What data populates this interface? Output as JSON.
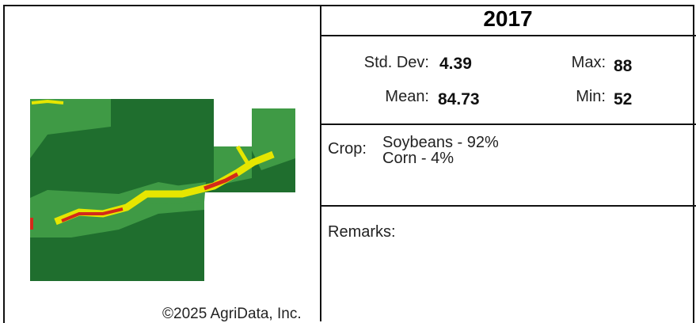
{
  "header": {
    "year": "2017"
  },
  "stats": {
    "std_dev_label": "Std. Dev:",
    "std_dev": 4.39,
    "max_label": "Max:",
    "max": 88,
    "mean_label": "Mean:",
    "mean": 84.73,
    "min_label": "Min:",
    "min": 52
  },
  "crop": {
    "label": "Crop:",
    "items": [
      "Soybeans - 92%",
      "Corn - 4%"
    ]
  },
  "remarks": {
    "label": "Remarks:"
  },
  "copyright": "©2025 AgriData, Inc."
}
